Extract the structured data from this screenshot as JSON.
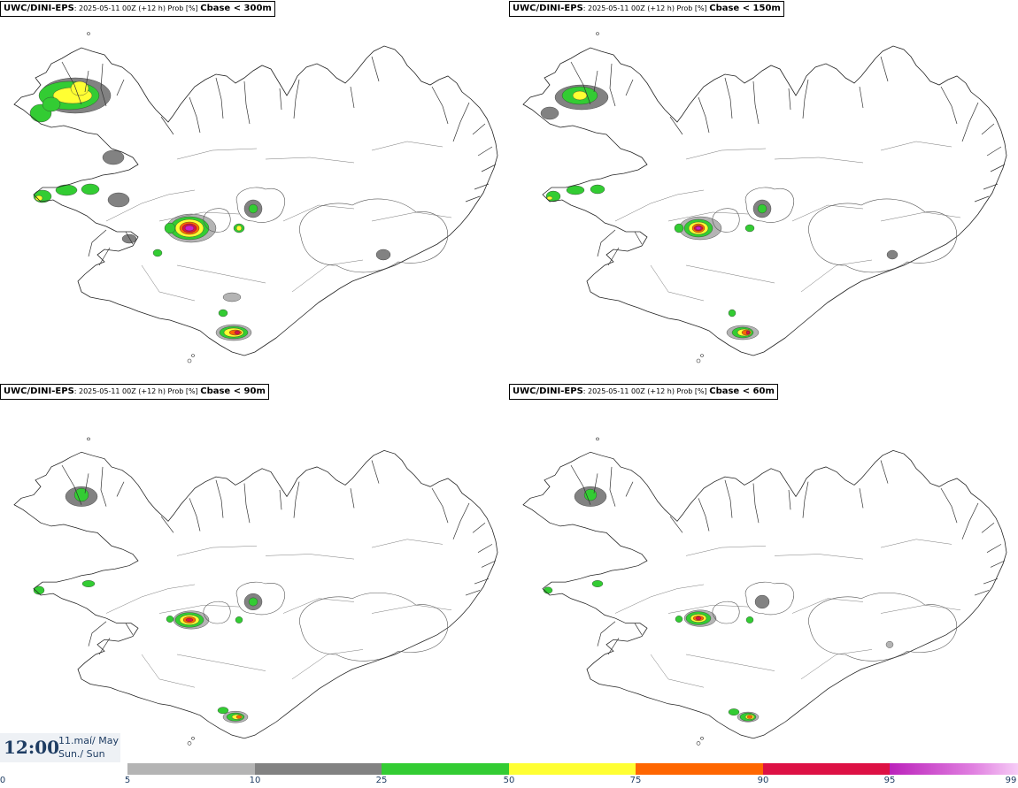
{
  "panels": [
    {
      "source": "UWC/DINI-EPS",
      "meta": ": 2025-05-11 00Z (+12 h) Prob [%]",
      "threshold": "Cbase < 300m"
    },
    {
      "source": "UWC/DINI-EPS",
      "meta": ": 2025-05-11 00Z (+12 h) Prob [%]",
      "threshold": "Cbase < 150m"
    },
    {
      "source": "UWC/DINI-EPS",
      "meta": ": 2025-05-11 00Z (+12 h) Prob [%]",
      "threshold": "Cbase < 90m"
    },
    {
      "source": "UWC/DINI-EPS",
      "meta": ": 2025-05-11 00Z (+12 h) Prob [%]",
      "threshold": "Cbase < 60m"
    }
  ],
  "valid_time": {
    "time": "12:00",
    "date_line1": "11.maí/ May",
    "date_line2": "Sun./ Sun"
  },
  "colorbar": {
    "ticks": [
      "0",
      "5",
      "10",
      "25",
      "50",
      "75",
      "90",
      "95",
      "99"
    ],
    "segments": [
      {
        "from": 5,
        "to": 10,
        "color": "#b4b4b4"
      },
      {
        "from": 10,
        "to": 25,
        "color": "#828282"
      },
      {
        "from": 25,
        "to": 50,
        "color": "#33cc33"
      },
      {
        "from": 50,
        "to": 75,
        "color": "#ffff33"
      },
      {
        "from": 75,
        "to": 90,
        "color": "#ff6600"
      },
      {
        "from": 90,
        "to": 95,
        "color": "#dd1144"
      },
      {
        "from": 95,
        "to": 99,
        "color": "#cc22cc"
      },
      {
        "from": 99,
        "to": 100,
        "color": "#f0b8f0"
      }
    ]
  }
}
